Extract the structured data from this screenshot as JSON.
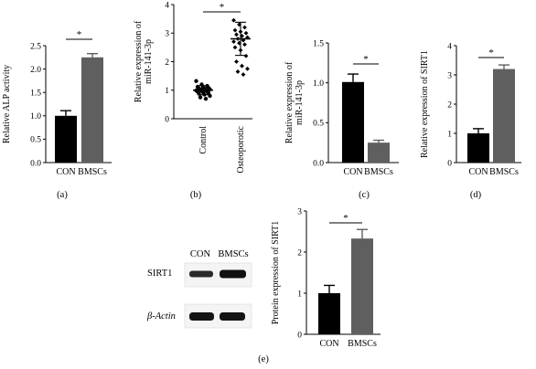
{
  "panel_labels": {
    "a": "(a)",
    "b": "(b)",
    "c": "(c)",
    "d": "(d)",
    "e": "(e)"
  },
  "blot": {
    "columns": [
      "CON",
      "BMSCs"
    ],
    "rows": [
      "SIRT1",
      "β-Actin"
    ]
  },
  "colors": {
    "black": "#000000",
    "gray": "#5f5f5f",
    "band": "#1a1a1a"
  },
  "chart_data": [
    {
      "id": "a",
      "type": "bar",
      "categories": [
        "CON",
        "BMSCs"
      ],
      "values": [
        1.0,
        2.25
      ],
      "errors": [
        0.11,
        0.08
      ],
      "colors": [
        "#000000",
        "#5f5f5f"
      ],
      "ylabel": "Relative ALP activity",
      "ylim": [
        0,
        2.5
      ],
      "yticks": [
        "0.0",
        "0.5",
        "1.0",
        "1.5",
        "2.0",
        "2.5"
      ],
      "significance": "*"
    },
    {
      "id": "b",
      "type": "scatter",
      "categories": [
        "Control",
        "Osteoporotic"
      ],
      "points": [
        [
          1.32,
          1.2,
          1.15,
          1.12,
          1.1,
          1.08,
          1.06,
          1.05,
          1.03,
          1.02,
          1.0,
          0.99,
          0.98,
          0.96,
          0.95,
          0.93,
          0.9,
          0.88,
          0.85,
          0.8,
          0.75,
          0.7
        ],
        [
          3.45,
          3.3,
          3.2,
          3.1,
          3.05,
          3.0,
          2.95,
          2.9,
          2.85,
          2.8,
          2.75,
          2.7,
          2.65,
          2.6,
          2.5,
          2.4,
          2.2,
          2.0,
          1.85,
          1.75,
          1.65,
          1.55
        ]
      ],
      "means": [
        1.0,
        2.8
      ],
      "sds": [
        0.16,
        0.58
      ],
      "ylabel": "Relative expression of miR-141-3p",
      "ylim": [
        0,
        4
      ],
      "yticks": [
        "0",
        "1",
        "2",
        "3",
        "4"
      ],
      "significance": "*"
    },
    {
      "id": "c",
      "type": "bar",
      "categories": [
        "CON",
        "BMSCs"
      ],
      "values": [
        1.01,
        0.25
      ],
      "errors": [
        0.1,
        0.03
      ],
      "colors": [
        "#000000",
        "#5f5f5f"
      ],
      "ylabel": "Relative expression of miR-141-3p",
      "ylim": [
        0,
        1.5
      ],
      "yticks": [
        "0.0",
        "0.5",
        "1.0",
        "1.5"
      ],
      "significance": "*"
    },
    {
      "id": "d",
      "type": "bar",
      "categories": [
        "CON",
        "BMSCs"
      ],
      "values": [
        1.0,
        3.2
      ],
      "errors": [
        0.16,
        0.14
      ],
      "colors": [
        "#000000",
        "#5f5f5f"
      ],
      "ylabel": "Relative expression of SIRT1",
      "ylim": [
        0,
        4
      ],
      "yticks": [
        "0",
        "1",
        "2",
        "3",
        "4"
      ],
      "significance": "*"
    },
    {
      "id": "e",
      "type": "bar",
      "categories": [
        "CON",
        "BMSCs"
      ],
      "values": [
        1.0,
        2.33
      ],
      "errors": [
        0.19,
        0.22
      ],
      "colors": [
        "#000000",
        "#5f5f5f"
      ],
      "ylabel": "Protein expression of SIRT1",
      "ylim": [
        0,
        3
      ],
      "yticks": [
        "0",
        "1",
        "2",
        "3"
      ],
      "significance": "*"
    }
  ]
}
